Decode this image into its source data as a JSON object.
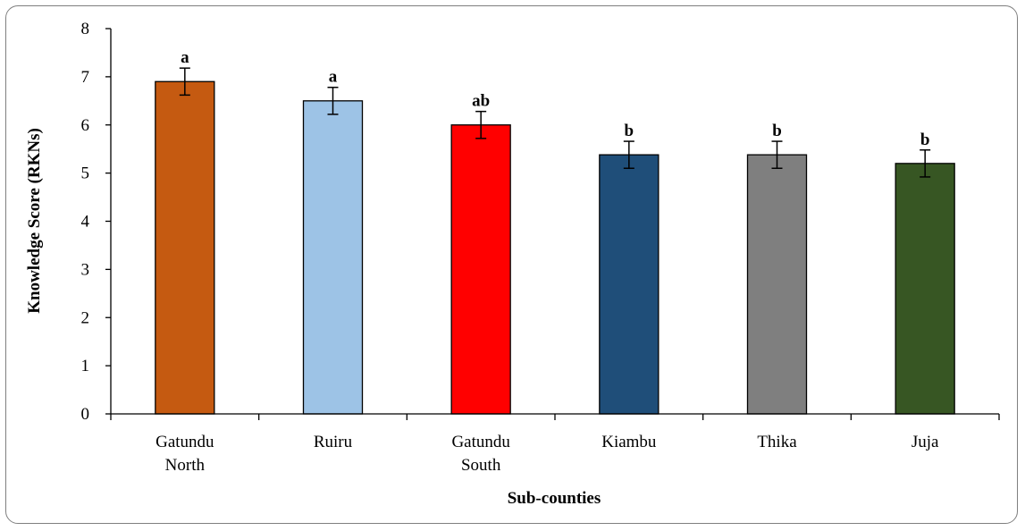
{
  "chart_data": {
    "type": "bar",
    "title": "",
    "xlabel": "Sub-counties",
    "ylabel": "Knowledge Score (RKNs)",
    "ylim": [
      0,
      8
    ],
    "yticks": [
      "0",
      "1",
      "2",
      "3",
      "4",
      "5",
      "6",
      "7",
      "8"
    ],
    "grid": false,
    "legend": "none",
    "categories": [
      {
        "lines": [
          "Gatundu",
          "North"
        ]
      },
      {
        "lines": [
          "Ruiru"
        ]
      },
      {
        "lines": [
          "Gatundu",
          "South"
        ]
      },
      {
        "lines": [
          "Kiambu"
        ]
      },
      {
        "lines": [
          "Thika"
        ]
      },
      {
        "lines": [
          "Juja"
        ]
      }
    ],
    "values": [
      6.9,
      6.5,
      6.0,
      5.38,
      5.38,
      5.2
    ],
    "errors": [
      0.28,
      0.28,
      0.28,
      0.28,
      0.28,
      0.28
    ],
    "significance_letters": [
      "a",
      "a",
      "ab",
      "b",
      "b",
      "b"
    ],
    "colors": [
      "#c55a11",
      "#9dc3e6",
      "#ff0000",
      "#1f4e79",
      "#7f7f7f",
      "#375623"
    ]
  }
}
